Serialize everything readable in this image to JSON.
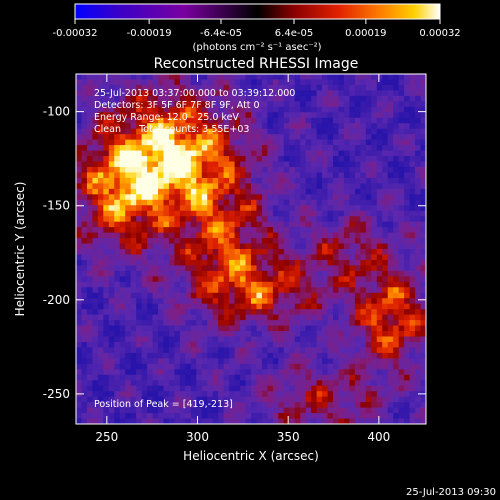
{
  "colorbar": {
    "ticks": [
      "-0.00032",
      "-0.00019",
      "-6.4e-05",
      "6.4e-05",
      "0.00019",
      "0.00032"
    ],
    "tick_values": [
      -0.00032,
      -0.00019,
      -6.4e-05,
      6.4e-05,
      0.00019,
      0.00032
    ],
    "range": [
      -0.00032,
      0.00032
    ],
    "units_label": "(photons cm⁻² s⁻¹ asec⁻²)",
    "colors": [
      "#0000ff",
      "#3a00c8",
      "#7a00a0",
      "#000000",
      "#8a0000",
      "#e02000",
      "#ff8000",
      "#ffd000",
      "#ffffff"
    ]
  },
  "chart_data": {
    "type": "heatmap",
    "title": "Reconstructed RHESSI Image",
    "xlabel": "Heliocentric X (arcsec)",
    "ylabel": "Heliocentric Y (arcsec)",
    "xlim": [
      233,
      426
    ],
    "ylim": [
      -266,
      -80
    ],
    "xticks": [
      250,
      300,
      350,
      400
    ],
    "yticks": [
      -100,
      -150,
      -200,
      -250
    ],
    "annotations": [
      "25-Jul-2013 03:37:00.000 to 03:39:12.000",
      "Detectors: 3F 5F 6F 7F 8F 9F, Att 0",
      "Energy Range: 12.0 - 25.0 keV",
      "Clean      Total counts: 3.55E+03",
      "Position of Peak = [419,-213]"
    ],
    "peak": {
      "x": 419,
      "y": -213
    }
  },
  "timestamp": "25-Jul-2013 09:30",
  "colors": {
    "background": "#000000",
    "text": "#ffffff"
  }
}
